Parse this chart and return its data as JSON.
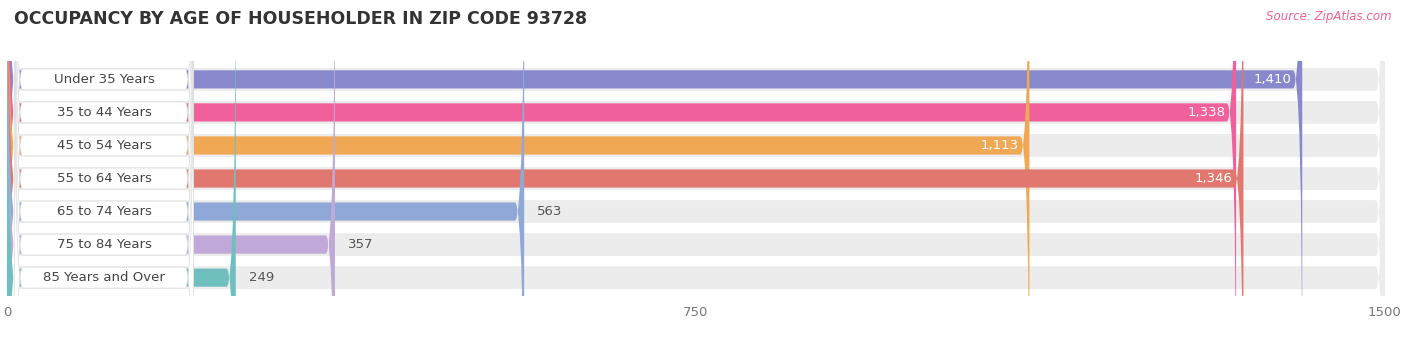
{
  "title": "OCCUPANCY BY AGE OF HOUSEHOLDER IN ZIP CODE 93728",
  "source": "Source: ZipAtlas.com",
  "categories": [
    "Under 35 Years",
    "35 to 44 Years",
    "45 to 54 Years",
    "55 to 64 Years",
    "65 to 74 Years",
    "75 to 84 Years",
    "85 Years and Over"
  ],
  "values": [
    1410,
    1338,
    1113,
    1346,
    563,
    357,
    249
  ],
  "bar_colors": [
    "#8888cc",
    "#f0609a",
    "#f0a855",
    "#e07870",
    "#90a8d8",
    "#c0a8d8",
    "#70bfbf"
  ],
  "xlim_max": 1500,
  "xticks": [
    0,
    750,
    1500
  ],
  "background_color": "#f7f7f7",
  "bar_bg_color": "#ececec",
  "row_bg_color": "#f0f0f0",
  "title_fontsize": 12.5,
  "label_fontsize": 9.5,
  "value_fontsize": 9.5
}
